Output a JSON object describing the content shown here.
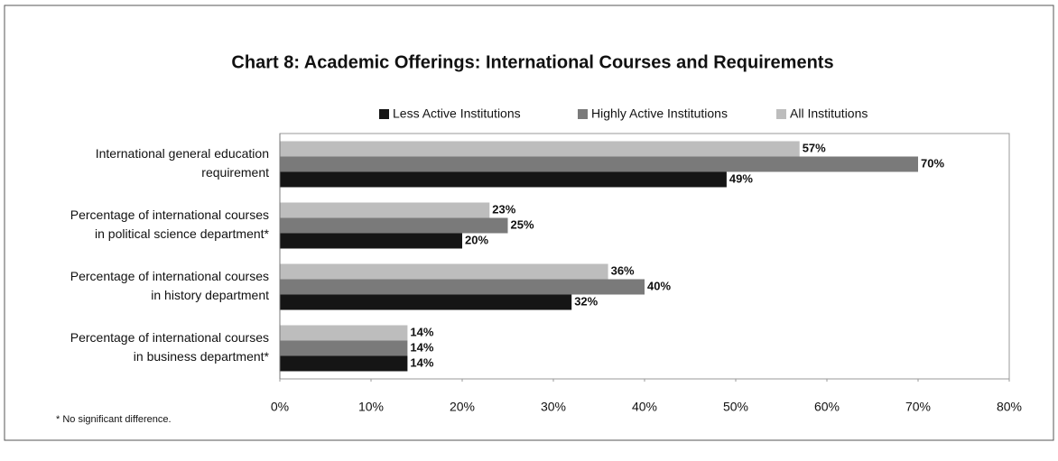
{
  "chart_data": {
    "type": "hbar",
    "title": "Chart 8: Academic Offerings: International Courses and Requirements",
    "categories": [
      [
        "International general education",
        "requirement"
      ],
      [
        "Percentage of international courses",
        "in political science department*"
      ],
      [
        "Percentage of international courses",
        "in history department"
      ],
      [
        "Percentage of international courses",
        "in business department*"
      ]
    ],
    "series": [
      {
        "name": "Less Active Institutions",
        "color": "#151515",
        "values": [
          49,
          20,
          32,
          14
        ],
        "value_labels": [
          "49%",
          "20%",
          "32%",
          "14%"
        ]
      },
      {
        "name": "Highly Active Institutions",
        "color": "#7a7a7a",
        "values": [
          70,
          25,
          40,
          14
        ],
        "value_labels": [
          "70%",
          "25%",
          "40%",
          "14%"
        ]
      },
      {
        "name": "All Institutions",
        "color": "#bdbdbd",
        "values": [
          57,
          23,
          36,
          14
        ],
        "value_labels": [
          "57%",
          "23%",
          "36%",
          "14%"
        ]
      }
    ],
    "xlim": [
      0,
      80
    ],
    "xticks": [
      {
        "value": 0,
        "label": "0%"
      },
      {
        "value": 10,
        "label": "10%"
      },
      {
        "value": 20,
        "label": "20%"
      },
      {
        "value": 30,
        "label": "30%"
      },
      {
        "value": 40,
        "label": "40%"
      },
      {
        "value": 50,
        "label": "50%"
      },
      {
        "value": 60,
        "label": "60%"
      },
      {
        "value": 70,
        "label": "70%"
      },
      {
        "value": 80,
        "label": "80%"
      }
    ],
    "legend": "top",
    "footnote": "* No significant difference."
  }
}
